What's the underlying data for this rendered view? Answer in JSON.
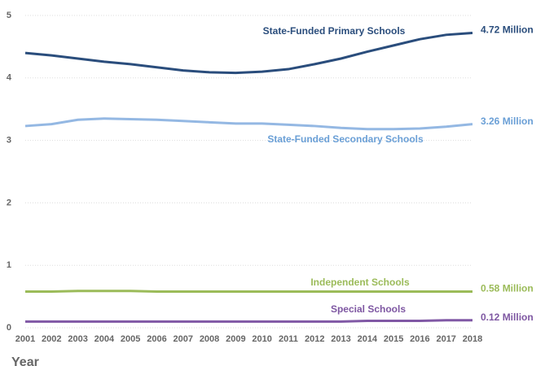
{
  "chart_data": {
    "type": "line",
    "x_label": "Year",
    "x": [
      2001,
      2002,
      2003,
      2004,
      2005,
      2006,
      2007,
      2008,
      2009,
      2010,
      2011,
      2012,
      2013,
      2014,
      2015,
      2016,
      2017,
      2018
    ],
    "xlim": [
      2001,
      2018
    ],
    "xticks": [
      2001,
      2002,
      2003,
      2004,
      2005,
      2006,
      2007,
      2008,
      2009,
      2010,
      2011,
      2012,
      2013,
      2014,
      2015,
      2016,
      2017,
      2018
    ],
    "ylim": [
      0,
      5
    ],
    "yticks": [
      0,
      1,
      2,
      3,
      4,
      5
    ],
    "grid": true,
    "series": [
      {
        "name": "State-Funded Primary Schools",
        "color": "#2a4d7c",
        "values": [
          4.4,
          4.36,
          4.31,
          4.26,
          4.22,
          4.17,
          4.12,
          4.09,
          4.08,
          4.1,
          4.14,
          4.22,
          4.31,
          4.42,
          4.52,
          4.62,
          4.69,
          4.72
        ],
        "value_labels": [
          null,
          null,
          null,
          null,
          null,
          null,
          null,
          null,
          null,
          null,
          null,
          null,
          null,
          null,
          null,
          null,
          null,
          "4.72 Million"
        ]
      },
      {
        "name": "State-Funded Secondary Schools",
        "color": "#94b8e3",
        "values": [
          3.23,
          3.26,
          3.33,
          3.35,
          3.34,
          3.33,
          3.31,
          3.29,
          3.27,
          3.27,
          3.25,
          3.23,
          3.2,
          3.18,
          3.18,
          3.19,
          3.22,
          3.26
        ],
        "value_labels": [
          null,
          null,
          null,
          null,
          null,
          null,
          null,
          null,
          null,
          null,
          null,
          null,
          null,
          null,
          null,
          null,
          null,
          "3.26 Million"
        ]
      },
      {
        "name": "Independent Schools",
        "color": "#9bbb59",
        "values": [
          0.58,
          0.58,
          0.59,
          0.59,
          0.59,
          0.58,
          0.58,
          0.58,
          0.58,
          0.58,
          0.58,
          0.58,
          0.58,
          0.58,
          0.58,
          0.58,
          0.58,
          0.58
        ],
        "value_labels": [
          null,
          null,
          null,
          null,
          null,
          null,
          null,
          null,
          null,
          null,
          null,
          null,
          null,
          null,
          null,
          null,
          null,
          "0.58 Million"
        ]
      },
      {
        "name": "Special Schools",
        "color": "#8058a5",
        "values": [
          0.1,
          0.1,
          0.1,
          0.1,
          0.1,
          0.1,
          0.1,
          0.1,
          0.1,
          0.1,
          0.1,
          0.1,
          0.1,
          0.11,
          0.11,
          0.11,
          0.12,
          0.12
        ],
        "value_labels": [
          null,
          null,
          null,
          null,
          null,
          null,
          null,
          null,
          null,
          null,
          null,
          null,
          null,
          null,
          null,
          null,
          null,
          "0.12 Million"
        ]
      }
    ]
  }
}
